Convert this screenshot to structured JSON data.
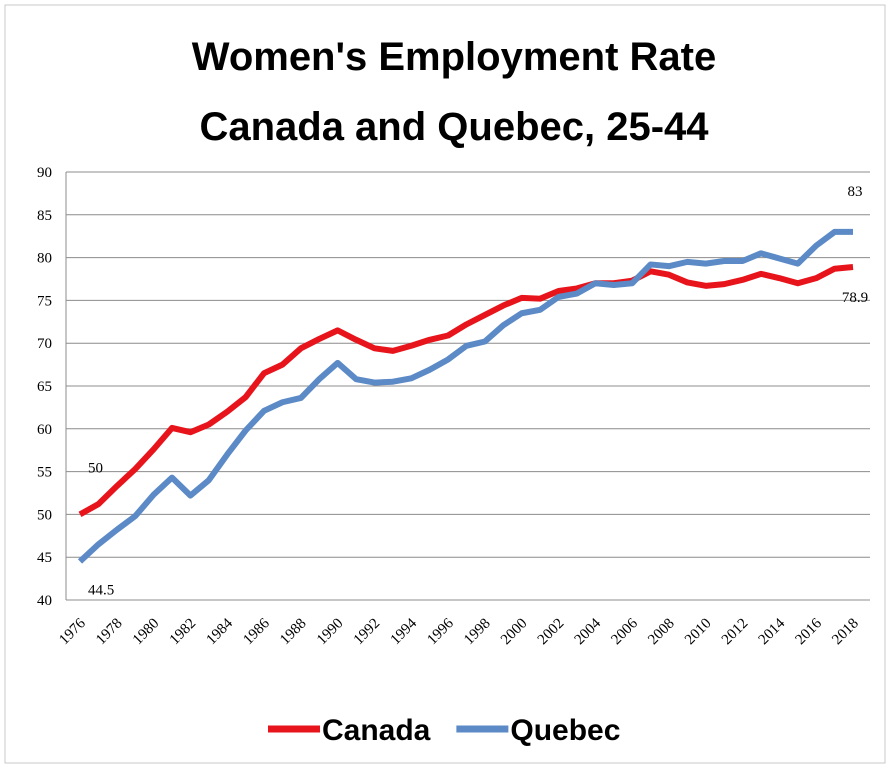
{
  "chart_data": {
    "type": "line",
    "title": "Women's Employment Rate",
    "subtitle": "Canada and Quebec, 25-44",
    "categories": [
      "1976",
      null,
      "1978",
      null,
      "1980",
      null,
      "1982",
      null,
      "1984",
      null,
      "1986",
      null,
      "1988",
      null,
      "1990",
      null,
      "1992",
      null,
      "1994",
      null,
      "1996",
      null,
      "1998",
      null,
      "2000",
      null,
      "2002",
      null,
      "2004",
      null,
      "2006",
      null,
      "2008",
      null,
      "2010",
      null,
      "2012",
      null,
      "2014",
      null,
      "2016",
      null,
      "2018"
    ],
    "series": [
      {
        "name": "Canada",
        "color": "#e8141b",
        "values": [
          50,
          51.2,
          53.3,
          55.3,
          57.6,
          60.1,
          59.6,
          60.5,
          62,
          63.7,
          66.5,
          67.5,
          69.4,
          70.5,
          71.5,
          70.4,
          69.4,
          69.1,
          69.7,
          70.4,
          70.9,
          72.2,
          73.3,
          74.4,
          75.3,
          75.2,
          76.1,
          76.4,
          77,
          77,
          77.3,
          78.4,
          78,
          77.1,
          76.7,
          76.9,
          77.4,
          78.1,
          77.6,
          77,
          77.6,
          78.7,
          78.9
        ],
        "value_labels": [
          "50",
          null,
          null,
          null,
          null,
          null,
          null,
          null,
          null,
          null,
          null,
          null,
          null,
          null,
          null,
          null,
          null,
          null,
          null,
          null,
          null,
          null,
          null,
          null,
          null,
          null,
          null,
          null,
          null,
          null,
          null,
          null,
          null,
          null,
          null,
          null,
          null,
          null,
          null,
          null,
          null,
          null,
          "78.9"
        ]
      },
      {
        "name": "Quebec",
        "color": "#5b8ac6",
        "values": [
          44.5,
          46.5,
          48.2,
          49.8,
          52.3,
          54.3,
          52.2,
          54,
          57,
          59.8,
          62.1,
          63.1,
          63.6,
          65.8,
          67.7,
          65.8,
          65.4,
          65.5,
          65.9,
          66.9,
          68.1,
          69.7,
          70.2,
          72.1,
          73.5,
          73.9,
          75.4,
          75.8,
          77,
          76.8,
          77,
          79.2,
          79,
          79.5,
          79.3,
          79.6,
          79.6,
          80.5,
          79.9,
          79.3,
          81.4,
          83,
          83
        ],
        "value_labels": [
          "44.5",
          null,
          null,
          null,
          null,
          null,
          null,
          null,
          null,
          null,
          null,
          null,
          null,
          null,
          null,
          null,
          null,
          null,
          null,
          null,
          null,
          null,
          null,
          null,
          null,
          null,
          null,
          null,
          null,
          null,
          null,
          null,
          null,
          null,
          null,
          null,
          null,
          null,
          null,
          null,
          null,
          null,
          "83"
        ]
      }
    ],
    "ylim": [
      40,
      90
    ],
    "yticks": [
      40,
      45,
      50,
      55,
      60,
      65,
      70,
      75,
      80,
      85,
      90
    ],
    "grid": true,
    "legend": "bottom"
  }
}
